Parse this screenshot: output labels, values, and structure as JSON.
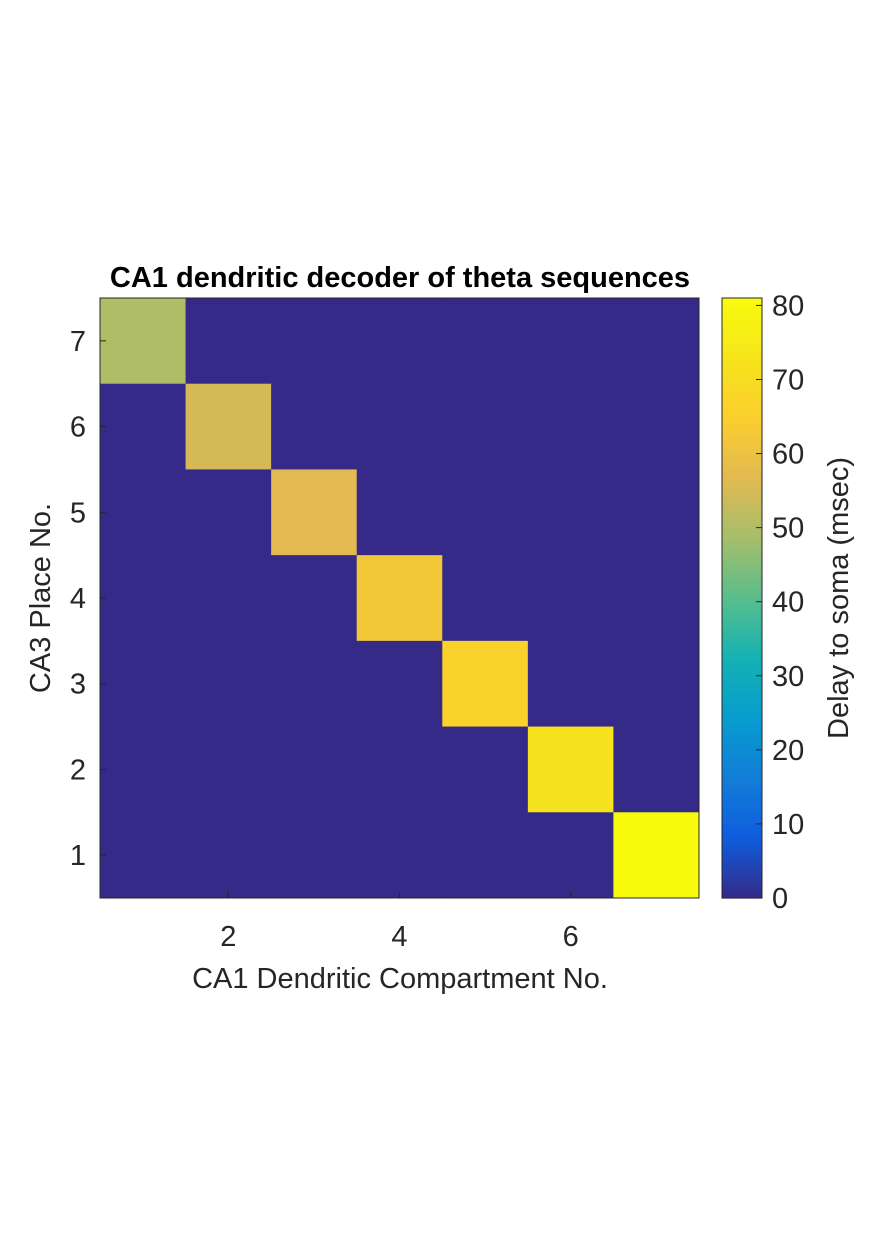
{
  "chart_data": {
    "type": "heatmap",
    "title": "CA1 dendritic decoder of theta sequences",
    "xlabel": "CA1 Dendritic Compartment No.",
    "ylabel": "CA3 Place No.",
    "x": [
      1,
      2,
      3,
      4,
      5,
      6,
      7
    ],
    "y": [
      1,
      2,
      3,
      4,
      5,
      6,
      7
    ],
    "xlim": [
      0.5,
      7.5
    ],
    "ylim": [
      0.5,
      7.5
    ],
    "x_ticks": [
      2,
      4,
      6
    ],
    "y_ticks": [
      1,
      2,
      3,
      4,
      5,
      6,
      7
    ],
    "matrix_rows_top_to_bottom": [
      [
        50,
        0,
        0,
        0,
        0,
        0,
        0
      ],
      [
        0,
        55,
        0,
        0,
        0,
        0,
        0
      ],
      [
        0,
        0,
        57,
        0,
        0,
        0,
        0
      ],
      [
        0,
        0,
        0,
        62,
        0,
        0,
        0
      ],
      [
        0,
        0,
        0,
        0,
        66,
        0,
        0
      ],
      [
        0,
        0,
        0,
        0,
        0,
        72,
        0
      ],
      [
        0,
        0,
        0,
        0,
        0,
        0,
        81
      ]
    ],
    "colorbar": {
      "label": "Delay to soma (msec)",
      "limits": [
        0,
        81
      ],
      "ticks": [
        0,
        10,
        20,
        30,
        40,
        50,
        60,
        70,
        80
      ],
      "colormap": "parula"
    },
    "grid": false,
    "legend": "none"
  }
}
